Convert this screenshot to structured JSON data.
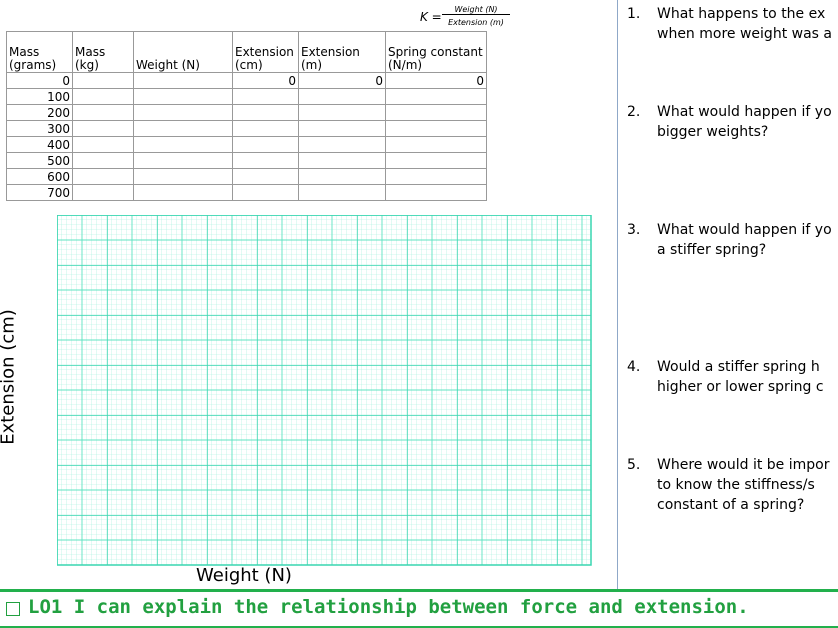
{
  "formula": {
    "lhs": "K =",
    "numerator": "Weight (N)",
    "denominator": "Extension (m)"
  },
  "table": {
    "header": [
      "Mass (grams)",
      "Mass (kg)",
      "Weight (N)",
      "Extension (cm)",
      "Extension (m)",
      "Spring constant (N/m)"
    ],
    "rows": [
      [
        0,
        null,
        null,
        0,
        0,
        0
      ],
      [
        100,
        null,
        null,
        null,
        null,
        null
      ],
      [
        200,
        null,
        null,
        null,
        null,
        null
      ],
      [
        300,
        null,
        null,
        null,
        null,
        null
      ],
      [
        400,
        null,
        null,
        null,
        null,
        null
      ],
      [
        500,
        null,
        null,
        null,
        null,
        null
      ],
      [
        600,
        null,
        null,
        null,
        null,
        null
      ],
      [
        700,
        null,
        null,
        null,
        null,
        null
      ]
    ]
  },
  "graph": {
    "y_label": "Extension (cm)",
    "x_label": "Weight (N)"
  },
  "questions": [
    {
      "number": "1.",
      "lines": [
        "What happens to the ex",
        "when  more weight was a"
      ]
    },
    {
      "number": "2.",
      "lines": [
        "What would happen if yo",
        "bigger weights?"
      ]
    },
    {
      "number": "3.",
      "lines": [
        "What would happen if yo",
        "a stiffer spring?"
      ]
    },
    {
      "number": "4.",
      "lines": [
        "Would a stiffer spring h",
        "higher or lower spring c"
      ]
    },
    {
      "number": "5.",
      "lines": [
        "Where would it be impor",
        "to know the stiffness/s",
        "constant of a spring?"
      ]
    }
  ],
  "footer": {
    "text": "LO1 I can explain the relationship between force and extension."
  }
}
